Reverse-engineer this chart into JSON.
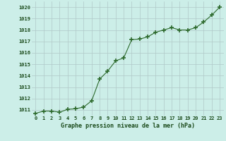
{
  "x": [
    0,
    1,
    2,
    3,
    4,
    5,
    6,
    7,
    8,
    9,
    10,
    11,
    12,
    13,
    14,
    15,
    16,
    17,
    18,
    19,
    20,
    21,
    22,
    23
  ],
  "y": [
    1010.7,
    1010.9,
    1010.9,
    1010.8,
    1011.05,
    1011.1,
    1011.25,
    1011.8,
    1013.7,
    1014.4,
    1015.3,
    1015.55,
    1017.15,
    1017.2,
    1017.4,
    1017.8,
    1018.0,
    1018.2,
    1018.0,
    1018.0,
    1018.2,
    1018.7,
    1019.3,
    1020.0
  ],
  "line_color": "#2d6a2d",
  "marker": "+",
  "marker_size": 4,
  "bg_color": "#cceee8",
  "grid_color": "#b0c8c8",
  "xlabel": "Graphe pression niveau de la mer (hPa)",
  "xlabel_color": "#1a4a1a",
  "tick_color": "#1a4a1a",
  "ylim": [
    1010.5,
    1020.5
  ],
  "xlim": [
    -0.5,
    23.5
  ],
  "yticks": [
    1011,
    1012,
    1013,
    1014,
    1015,
    1016,
    1017,
    1018,
    1019,
    1020
  ],
  "xticks": [
    0,
    1,
    2,
    3,
    4,
    5,
    6,
    7,
    8,
    9,
    10,
    11,
    12,
    13,
    14,
    15,
    16,
    17,
    18,
    19,
    20,
    21,
    22,
    23
  ],
  "xtick_labels": [
    "0",
    "1",
    "2",
    "3",
    "4",
    "5",
    "6",
    "7",
    "8",
    "9",
    "10",
    "11",
    "12",
    "13",
    "14",
    "15",
    "16",
    "17",
    "18",
    "19",
    "20",
    "21",
    "22",
    "23"
  ]
}
